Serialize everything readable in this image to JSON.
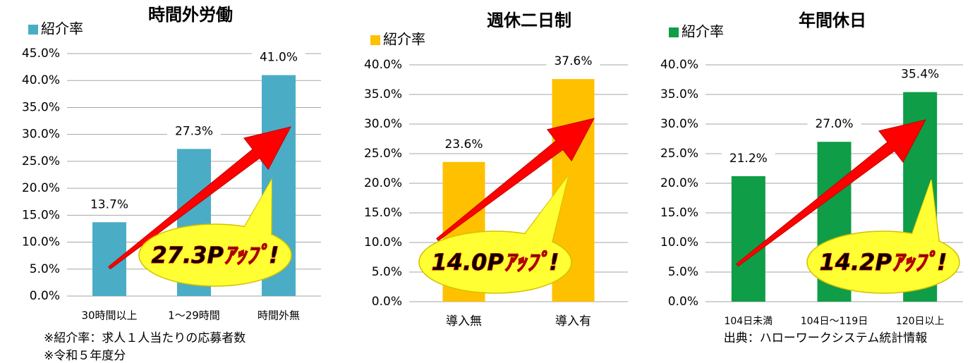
{
  "chart_data": [
    {
      "type": "bar",
      "title": "時間外労働",
      "categories": [
        "30時間以上",
        "1〜29時間",
        "時間外無"
      ],
      "series": [
        {
          "name": "紹介率",
          "color": "#4bacc6",
          "values": [
            13.7,
            27.3,
            41.0
          ],
          "value_labels": [
            "13.7%",
            "27.3%",
            "41.0%"
          ]
        }
      ],
      "ylim": [
        0,
        45
      ],
      "yticks": [
        {
          "value": 0,
          "label": "0.0%"
        },
        {
          "value": 5,
          "label": "5.0%"
        },
        {
          "value": 10,
          "label": "10.0%"
        },
        {
          "value": 15,
          "label": "15.0%"
        },
        {
          "value": 20,
          "label": "20.0%"
        },
        {
          "value": 25,
          "label": "25.0%"
        },
        {
          "value": 30,
          "label": "30.0%"
        },
        {
          "value": 35,
          "label": "35.0%"
        },
        {
          "value": 40,
          "label": "40.0%"
        },
        {
          "value": 45,
          "label": "45.0%"
        }
      ],
      "grid": true,
      "label_color": "#2e75b6",
      "annotation": "27.3Pｱｯﾌﾟ!"
    },
    {
      "type": "bar",
      "title": "週休二日制",
      "categories": [
        "導入無",
        "導入有"
      ],
      "series": [
        {
          "name": "紹介率",
          "color": "#ffc000",
          "values": [
            23.6,
            37.6
          ],
          "value_labels": [
            "23.6%",
            "37.6%"
          ]
        }
      ],
      "ylim": [
        0,
        40
      ],
      "yticks": [
        {
          "value": 0,
          "label": "0.0%"
        },
        {
          "value": 5,
          "label": "5.0%"
        },
        {
          "value": 10,
          "label": "10.0%"
        },
        {
          "value": 15,
          "label": "15.0%"
        },
        {
          "value": 20,
          "label": "20.0%"
        },
        {
          "value": 25,
          "label": "25.0%"
        },
        {
          "value": 30,
          "label": "30.0%"
        },
        {
          "value": 35,
          "label": "35.0%"
        },
        {
          "value": 40,
          "label": "40.0%"
        }
      ],
      "grid": true,
      "label_color": "#b8860b",
      "annotation": "14.0Pｱｯﾌﾟ!"
    },
    {
      "type": "bar",
      "title": "年間休日",
      "categories": [
        "104日未満",
        "104日〜119日",
        "120日以上"
      ],
      "series": [
        {
          "name": "紹介率",
          "color": "#0f9d48",
          "values": [
            21.2,
            27.0,
            35.4
          ],
          "value_labels": [
            "21.2%",
            "27.0%",
            "35.4%"
          ]
        }
      ],
      "ylim": [
        0,
        40
      ],
      "yticks": [
        {
          "value": 0,
          "label": "0.0%"
        },
        {
          "value": 5,
          "label": "5.0%"
        },
        {
          "value": 10,
          "label": "10.0%"
        },
        {
          "value": 15,
          "label": "15.0%"
        },
        {
          "value": 20,
          "label": "20.0%"
        },
        {
          "value": 25,
          "label": "25.0%"
        },
        {
          "value": 30,
          "label": "30.0%"
        },
        {
          "value": 35,
          "label": "35.0%"
        },
        {
          "value": 40,
          "label": "40.0%"
        }
      ],
      "grid": true,
      "label_color": "#00b050",
      "annotation": "14.2Pｱｯﾌﾟ!"
    }
  ],
  "notes": [
    "※紹介率：求人１人当たりの応募者数",
    "※令和５年度分",
    "出典：ハローワークシステム統計情報"
  ]
}
